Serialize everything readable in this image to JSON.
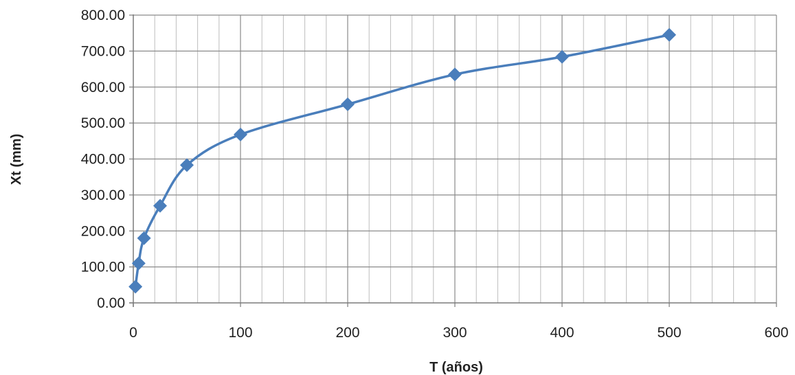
{
  "chart_data": {
    "type": "line",
    "title": "",
    "xlabel": "T (años)",
    "ylabel": "Xt (mm)",
    "xlim": [
      0,
      600
    ],
    "ylim": [
      0,
      800
    ],
    "x_ticks": [
      "0",
      "100",
      "200",
      "300",
      "400",
      "500",
      "600"
    ],
    "y_ticks": [
      "0.00",
      "100.00",
      "200.00",
      "300.00",
      "400.00",
      "500.00",
      "600.00",
      "700.00",
      "800.00"
    ],
    "grid": true,
    "legend": "none",
    "series": [
      {
        "color": "#4a7ebb",
        "marker": "diamond",
        "smooth": true,
        "x": [
          2,
          5,
          10,
          25,
          50,
          100,
          200,
          300,
          400,
          500
        ],
        "y": [
          45,
          110,
          180,
          270,
          383,
          468,
          552,
          635,
          684,
          745
        ]
      }
    ]
  }
}
